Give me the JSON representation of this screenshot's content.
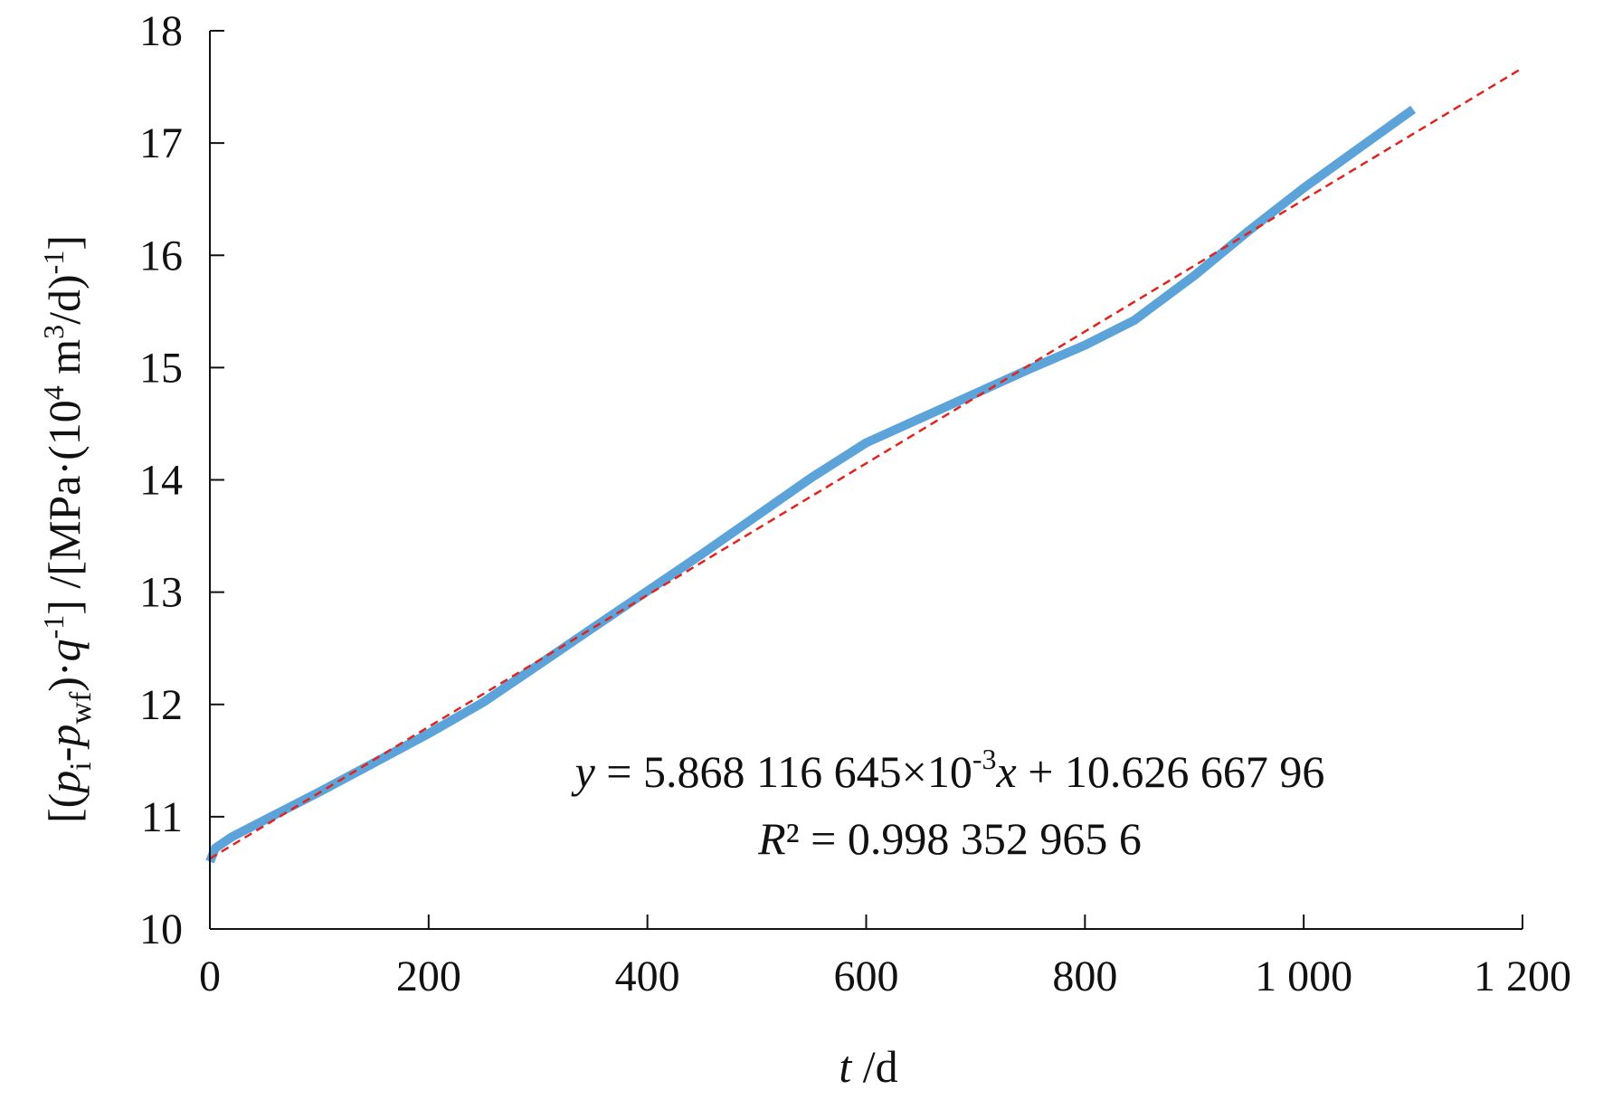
{
  "chart_data": {
    "type": "line",
    "xlabel": {
      "italic": "t",
      "rest": " /d"
    },
    "ylabel": "[(pi-pwf)·q-1] /[MPa·(104 m3/d)-1]",
    "xlim": [
      0,
      1200
    ],
    "ylim": [
      10,
      18
    ],
    "x_ticks": [
      0,
      200,
      400,
      600,
      800,
      1000,
      1200
    ],
    "x_tick_labels": [
      "0",
      "200",
      "400",
      "600",
      "800",
      "1 000",
      "1 200"
    ],
    "y_ticks": [
      10,
      11,
      12,
      13,
      14,
      15,
      16,
      17,
      18
    ],
    "y_tick_labels": [
      "10",
      "11",
      "12",
      "13",
      "14",
      "15",
      "16",
      "17",
      "18"
    ],
    "grid": false,
    "series": [
      {
        "style": "solid-thick",
        "color": "#5ba3d9",
        "x": [
          0,
          5,
          20,
          50,
          100,
          150,
          200,
          250,
          300,
          350,
          400,
          450,
          500,
          550,
          600,
          650,
          700,
          750,
          800,
          845,
          900,
          950,
          1000,
          1050,
          1100
        ],
        "y": [
          10.6,
          10.72,
          10.82,
          10.97,
          11.22,
          11.48,
          11.74,
          12.02,
          12.35,
          12.68,
          13.01,
          13.34,
          13.68,
          14.02,
          14.33,
          14.55,
          14.77,
          14.99,
          15.2,
          15.42,
          15.82,
          16.22,
          16.6,
          16.95,
          17.3
        ]
      },
      {
        "style": "dashed-fit",
        "color": "#e0241f",
        "x": [
          0,
          1200
        ],
        "y": [
          10.6267,
          17.6684
        ]
      }
    ],
    "annotation": {
      "equation": {
        "y_var": "y",
        "body": " = 5.868 116 645×10",
        "exp": "-3",
        "x_var": "x",
        "tail": " + 10.626 667 96"
      },
      "r2": {
        "r_var": "R",
        "tail": "² = 0.998 352 965 6"
      }
    }
  }
}
